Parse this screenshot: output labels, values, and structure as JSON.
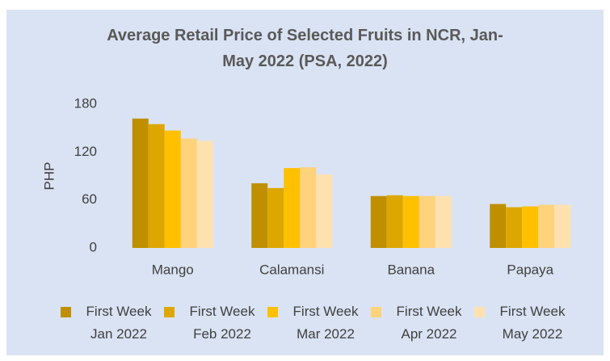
{
  "chart_data": {
    "type": "bar",
    "title": "Average Retail Price of Selected Fruits in NCR, Jan-May 2022 (PSA, 2022)",
    "y_label": "PHP",
    "categories": [
      "Mango",
      "Calamansi",
      "Banana",
      "Papaya"
    ],
    "series": [
      {
        "name": "First Week Jan 2022",
        "color": "#bf8f00",
        "values": [
          162,
          81,
          65,
          55
        ]
      },
      {
        "name": "First Week Feb 2022",
        "color": "#dda700",
        "values": [
          155,
          75,
          66,
          51
        ]
      },
      {
        "name": "First Week Mar 2022",
        "color": "#ffc000",
        "values": [
          147,
          100,
          65,
          52
        ]
      },
      {
        "name": "First Week Apr 2022",
        "color": "#ffd27c",
        "values": [
          137,
          101,
          65,
          54
        ]
      },
      {
        "name": "First Week May 2022",
        "color": "#ffe1b0",
        "values": [
          134,
          92,
          65,
          54
        ]
      }
    ],
    "ylim": [
      0,
      180
    ],
    "yticks": [
      0,
      60,
      120,
      180
    ],
    "grid": false,
    "legend": "bottom"
  }
}
